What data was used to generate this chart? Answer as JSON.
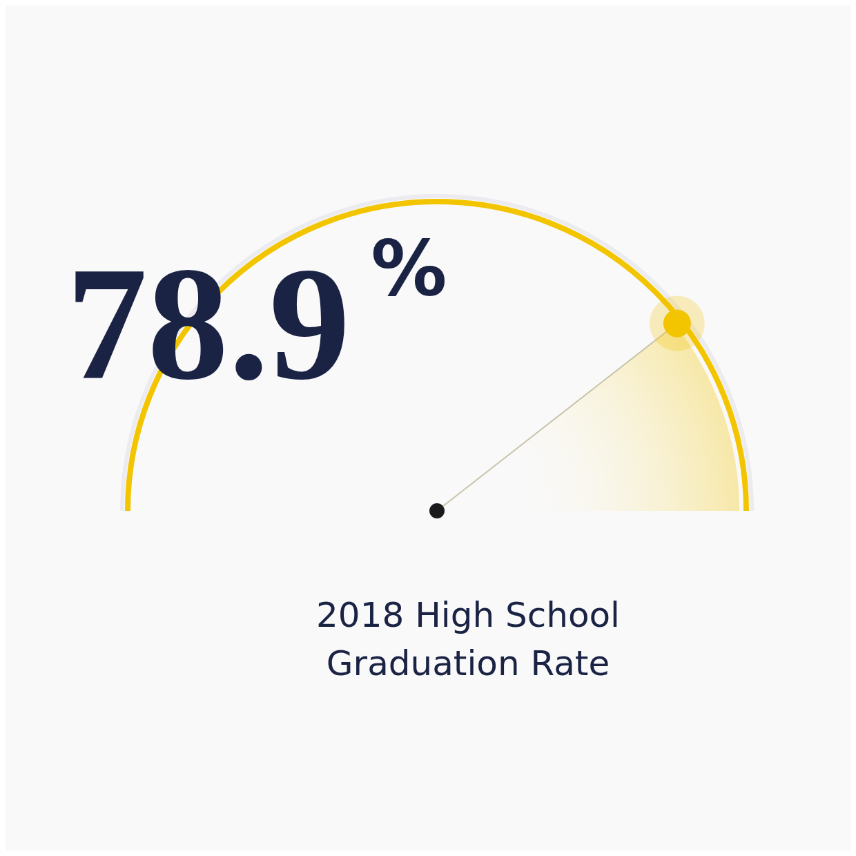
{
  "chart_data": {
    "type": "other",
    "title": "2018 High School Graduation Rate",
    "values": [
      78.9
    ],
    "value_labels": [
      "78.9$^{%}$"
    ],
    "color": "#f2c500"
  }
}
